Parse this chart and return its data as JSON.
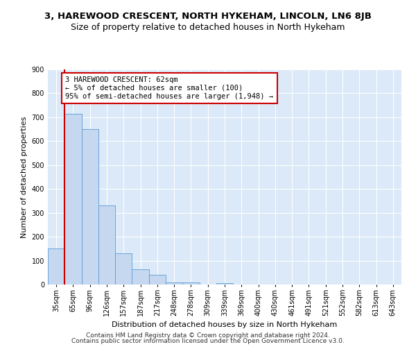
{
  "title": "3, HAREWOOD CRESCENT, NORTH HYKEHAM, LINCOLN, LN6 8JB",
  "subtitle": "Size of property relative to detached houses in North Hykeham",
  "xlabel": "Distribution of detached houses by size in North Hykeham",
  "ylabel": "Number of detached properties",
  "categories": [
    "35sqm",
    "65sqm",
    "96sqm",
    "126sqm",
    "157sqm",
    "187sqm",
    "217sqm",
    "248sqm",
    "278sqm",
    "309sqm",
    "339sqm",
    "369sqm",
    "400sqm",
    "430sqm",
    "461sqm",
    "491sqm",
    "521sqm",
    "552sqm",
    "582sqm",
    "613sqm",
    "643sqm"
  ],
  "values": [
    150,
    715,
    650,
    330,
    130,
    65,
    40,
    10,
    10,
    0,
    5,
    0,
    0,
    0,
    0,
    0,
    0,
    0,
    0,
    0,
    0
  ],
  "bar_color": "#c5d8f0",
  "bar_edge_color": "#5b9bd5",
  "annotation_text": "3 HAREWOOD CRESCENT: 62sqm\n← 5% of detached houses are smaller (100)\n95% of semi-detached houses are larger (1,948) →",
  "annotation_box_color": "#ffffff",
  "annotation_box_edge": "#cc0000",
  "property_line_color": "#cc0000",
  "ylim": [
    0,
    900
  ],
  "yticks": [
    0,
    100,
    200,
    300,
    400,
    500,
    600,
    700,
    800,
    900
  ],
  "footer1": "Contains HM Land Registry data © Crown copyright and database right 2024.",
  "footer2": "Contains public sector information licensed under the Open Government Licence v3.0.",
  "bg_color": "#dce9f8",
  "grid_color": "#ffffff",
  "title_fontsize": 9.5,
  "subtitle_fontsize": 9,
  "tick_fontsize": 7,
  "label_fontsize": 8,
  "footer_fontsize": 6.5
}
